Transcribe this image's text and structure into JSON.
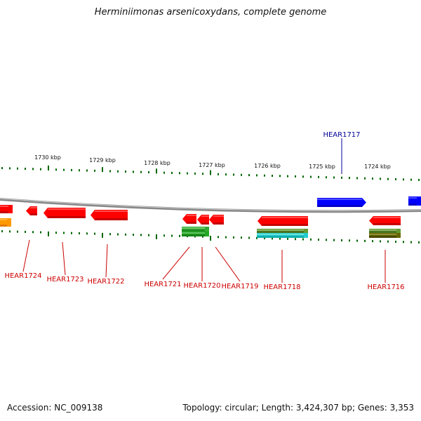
{
  "title": "Herminiimonas arsenicoxydans, complete genome",
  "footer": {
    "accession": "Accession: NC_009138",
    "stats": "Topology: circular; Length: 3,424,307 bp; Genes: 3,353"
  },
  "colors": {
    "backbone": "#888888",
    "ticks": "#006600",
    "reverse_gene": "#ff0000",
    "forward_gene": "#0000ff",
    "reverse_label": "#cc0000",
    "forward_label": "#000099"
  },
  "scale_labels": [
    "1730 kbp",
    "1729 kbp",
    "1728 kbp",
    "1727 kbp",
    "1726 kbp",
    "1725 kbp",
    "1724 kbp"
  ],
  "gene_labels": [
    "HEAR1724",
    "HEAR1723",
    "HEAR1722",
    "HEAR1721",
    "HEAR1720",
    "HEAR1719",
    "HEAR1718",
    "HEAR1717",
    "HEAR1716"
  ]
}
